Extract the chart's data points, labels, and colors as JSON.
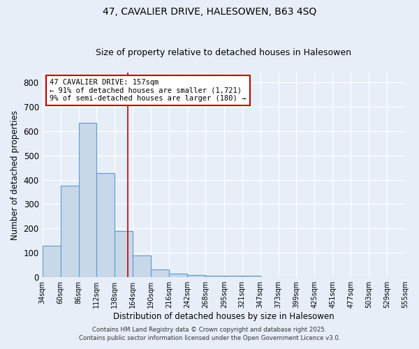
{
  "title_line1": "47, CAVALIER DRIVE, HALESOWEN, B63 4SQ",
  "title_line2": "Size of property relative to detached houses in Halesowen",
  "xlabel": "Distribution of detached houses by size in Halesowen",
  "ylabel": "Number of detached properties",
  "bar_color": "#c8d8e8",
  "bar_edge_color": "#5b9bd5",
  "bin_edges": [
    34,
    60,
    86,
    112,
    138,
    164,
    190,
    216,
    242,
    268,
    295,
    321,
    347,
    373,
    399,
    425,
    451,
    477,
    503,
    529,
    555
  ],
  "bar_heights": [
    128,
    375,
    635,
    428,
    188,
    88,
    33,
    16,
    8,
    7,
    7,
    7,
    0,
    0,
    0,
    0,
    0,
    0,
    0,
    0
  ],
  "property_size": 157,
  "vline_color": "#c00000",
  "annotation_text": "47 CAVALIER DRIVE: 157sqm\n← 91% of detached houses are smaller (1,721)\n9% of semi-detached houses are larger (180) →",
  "annotation_box_color": "#ffffff",
  "annotation_box_edge": "#c00000",
  "xlim_min": 34,
  "xlim_max": 555,
  "ylim_min": 0,
  "ylim_max": 840,
  "background_color": "#e8eef8",
  "grid_color": "#ffffff",
  "title1_fontsize": 10,
  "title2_fontsize": 9,
  "tick_label_fontsize": 7,
  "footer_text1": "Contains HM Land Registry data © Crown copyright and database right 2025.",
  "footer_text2": "Contains public sector information licensed under the Open Government Licence v3.0."
}
